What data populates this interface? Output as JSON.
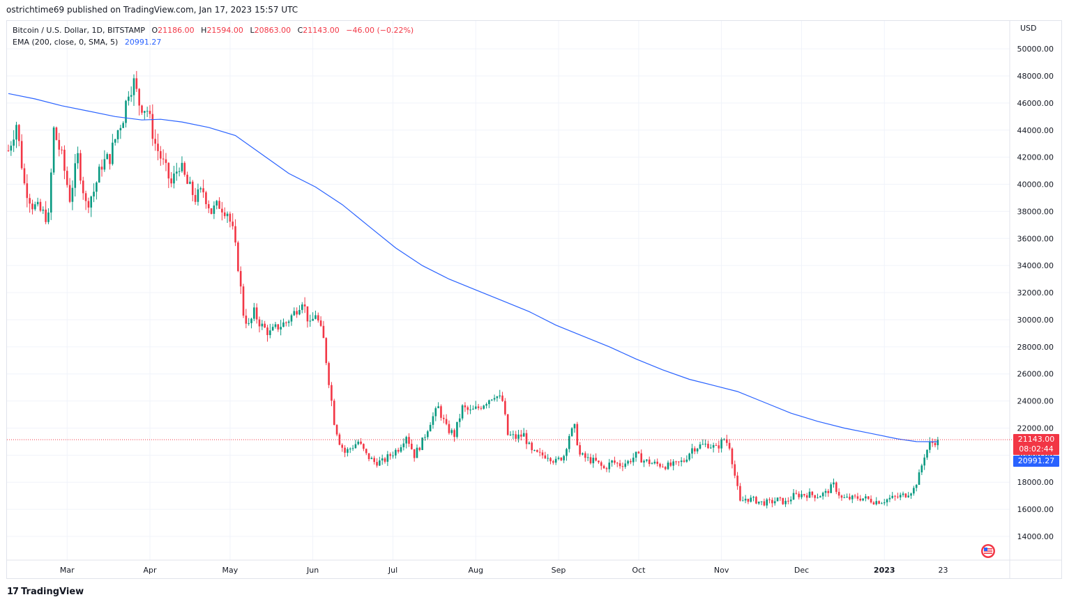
{
  "header": {
    "text": "ostrichtime69 published on TradingView.com, Jan 17, 2023 15:57 UTC"
  },
  "legend": {
    "symbol": "Bitcoin / U.S. Dollar, 1D, BITSTAMP",
    "open_label": "O",
    "open": "21186.00",
    "high_label": "H",
    "high": "21594.00",
    "low_label": "L",
    "low": "20863.00",
    "close_label": "C",
    "close": "21143.00",
    "change": "−46.00 (−0.22%)",
    "ema_label": "EMA (200, close, 0, SMA, 5)",
    "ema_value": "20991.27"
  },
  "price_axis": {
    "currency": "USD"
  },
  "badges": {
    "last_price": "21143.00",
    "countdown": "08:02:44",
    "ema": "20991.27"
  },
  "footer": {
    "brand": "TradingView"
  },
  "colors": {
    "up": "#089981",
    "down": "#f23645",
    "ema": "#2962ff",
    "grid": "#f0f3fa"
  },
  "chart_data": {
    "type": "candlestick",
    "symbol": "BTCUSD",
    "ylim": [
      12500,
      51500
    ],
    "y_ticks": [
      "14000.00",
      "16000.00",
      "18000.00",
      "20000.00",
      "22000.00",
      "24000.00",
      "26000.00",
      "28000.00",
      "30000.00",
      "32000.00",
      "34000.00",
      "36000.00",
      "38000.00",
      "40000.00",
      "42000.00",
      "44000.00",
      "46000.00",
      "48000.00",
      "50000.00"
    ],
    "x_ticks": [
      "Mar",
      "Apr",
      "May",
      "Jun",
      "Jul",
      "Aug",
      "Sep",
      "Oct",
      "Nov",
      "Dec",
      "2023",
      "23"
    ],
    "x_tick_days": [
      22,
      53,
      83,
      114,
      144,
      175,
      206,
      236,
      267,
      297,
      328,
      350
    ],
    "last_price": 21143,
    "series_anchors": {
      "description": "approximate daily close path (day index, close) read from chart",
      "points": [
        [
          0,
          42500
        ],
        [
          3,
          44500
        ],
        [
          6,
          40000
        ],
        [
          9,
          38500
        ],
        [
          12,
          38000
        ],
        [
          15,
          37500
        ],
        [
          17,
          44000
        ],
        [
          20,
          42000
        ],
        [
          23,
          39000
        ],
        [
          26,
          42000
        ],
        [
          29,
          38500
        ],
        [
          32,
          39500
        ],
        [
          35,
          41500
        ],
        [
          38,
          42000
        ],
        [
          41,
          44000
        ],
        [
          43,
          45000
        ],
        [
          45,
          47000
        ],
        [
          47,
          47500
        ],
        [
          49,
          46000
        ],
        [
          52,
          45500
        ],
        [
          55,
          43000
        ],
        [
          58,
          41500
        ],
        [
          61,
          40000
        ],
        [
          64,
          41500
        ],
        [
          67,
          40000
        ],
        [
          70,
          39000
        ],
        [
          73,
          39500
        ],
        [
          76,
          38000
        ],
        [
          79,
          38500
        ],
        [
          82,
          38000
        ],
        [
          84,
          36500
        ],
        [
          86,
          34000
        ],
        [
          88,
          30500
        ],
        [
          90,
          29500
        ],
        [
          92,
          30500
        ],
        [
          95,
          29500
        ],
        [
          98,
          29000
        ],
        [
          101,
          29500
        ],
        [
          104,
          29800
        ],
        [
          107,
          30500
        ],
        [
          110,
          31500
        ],
        [
          113,
          29500
        ],
        [
          115,
          30500
        ],
        [
          118,
          28500
        ],
        [
          120,
          25500
        ],
        [
          122,
          22500
        ],
        [
          124,
          21000
        ],
        [
          126,
          20200
        ],
        [
          128,
          20500
        ],
        [
          131,
          21000
        ],
        [
          134,
          20000
        ],
        [
          137,
          19500
        ],
        [
          140,
          19500
        ],
        [
          143,
          20000
        ],
        [
          146,
          20500
        ],
        [
          149,
          21500
        ],
        [
          152,
          20000
        ],
        [
          155,
          21000
        ],
        [
          158,
          22500
        ],
        [
          161,
          23500
        ],
        [
          164,
          22000
        ],
        [
          167,
          21500
        ],
        [
          170,
          23500
        ],
        [
          173,
          23200
        ],
        [
          176,
          23500
        ],
        [
          179,
          24000
        ],
        [
          182,
          24500
        ],
        [
          185,
          24000
        ],
        [
          187,
          21500
        ],
        [
          190,
          21300
        ],
        [
          193,
          21500
        ],
        [
          196,
          20200
        ],
        [
          199,
          20000
        ],
        [
          202,
          20000
        ],
        [
          205,
          19500
        ],
        [
          208,
          20000
        ],
        [
          210,
          21500
        ],
        [
          212,
          22000
        ],
        [
          214,
          20000
        ],
        [
          217,
          19700
        ],
        [
          220,
          19500
        ],
        [
          223,
          19000
        ],
        [
          226,
          19500
        ],
        [
          229,
          19300
        ],
        [
          232,
          19500
        ],
        [
          235,
          20000
        ],
        [
          238,
          19600
        ],
        [
          241,
          19400
        ],
        [
          244,
          19300
        ],
        [
          247,
          19200
        ],
        [
          250,
          19300
        ],
        [
          253,
          19600
        ],
        [
          256,
          20500
        ],
        [
          259,
          20700
        ],
        [
          262,
          20800
        ],
        [
          265,
          20500
        ],
        [
          268,
          21200
        ],
        [
          270,
          20700
        ],
        [
          272,
          18500
        ],
        [
          274,
          16500
        ],
        [
          276,
          16800
        ],
        [
          279,
          16700
        ],
        [
          282,
          16500
        ],
        [
          285,
          16500
        ],
        [
          288,
          16700
        ],
        [
          291,
          16500
        ],
        [
          294,
          17000
        ],
        [
          297,
          17100
        ],
        [
          300,
          17100
        ],
        [
          303,
          17000
        ],
        [
          306,
          17200
        ],
        [
          309,
          17800
        ],
        [
          312,
          16800
        ],
        [
          315,
          16800
        ],
        [
          318,
          16850
        ],
        [
          321,
          16800
        ],
        [
          324,
          16600
        ],
        [
          327,
          16600
        ],
        [
          330,
          16800
        ],
        [
          333,
          16900
        ],
        [
          336,
          17100
        ],
        [
          339,
          17500
        ],
        [
          341,
          18500
        ],
        [
          343,
          20000
        ],
        [
          345,
          20800
        ],
        [
          348,
          21143
        ]
      ]
    },
    "ema": {
      "name": "EMA (200, close, 0, SMA, 5)",
      "points": [
        [
          0,
          46700
        ],
        [
          10,
          46300
        ],
        [
          20,
          45800
        ],
        [
          30,
          45400
        ],
        [
          40,
          45000
        ],
        [
          50,
          44750
        ],
        [
          57,
          44800
        ],
        [
          65,
          44600
        ],
        [
          75,
          44200
        ],
        [
          85,
          43600
        ],
        [
          95,
          42200
        ],
        [
          105,
          40800
        ],
        [
          115,
          39800
        ],
        [
          125,
          38500
        ],
        [
          135,
          36900
        ],
        [
          145,
          35300
        ],
        [
          155,
          34000
        ],
        [
          165,
          33000
        ],
        [
          175,
          32200
        ],
        [
          185,
          31400
        ],
        [
          195,
          30600
        ],
        [
          205,
          29600
        ],
        [
          215,
          28800
        ],
        [
          225,
          28000
        ],
        [
          235,
          27100
        ],
        [
          245,
          26300
        ],
        [
          255,
          25600
        ],
        [
          265,
          25100
        ],
        [
          273,
          24700
        ],
        [
          283,
          23900
        ],
        [
          293,
          23100
        ],
        [
          303,
          22500
        ],
        [
          313,
          22000
        ],
        [
          323,
          21600
        ],
        [
          333,
          21200
        ],
        [
          340,
          21000
        ],
        [
          348,
          20991.27
        ]
      ]
    },
    "ema_last": 20991.27
  }
}
